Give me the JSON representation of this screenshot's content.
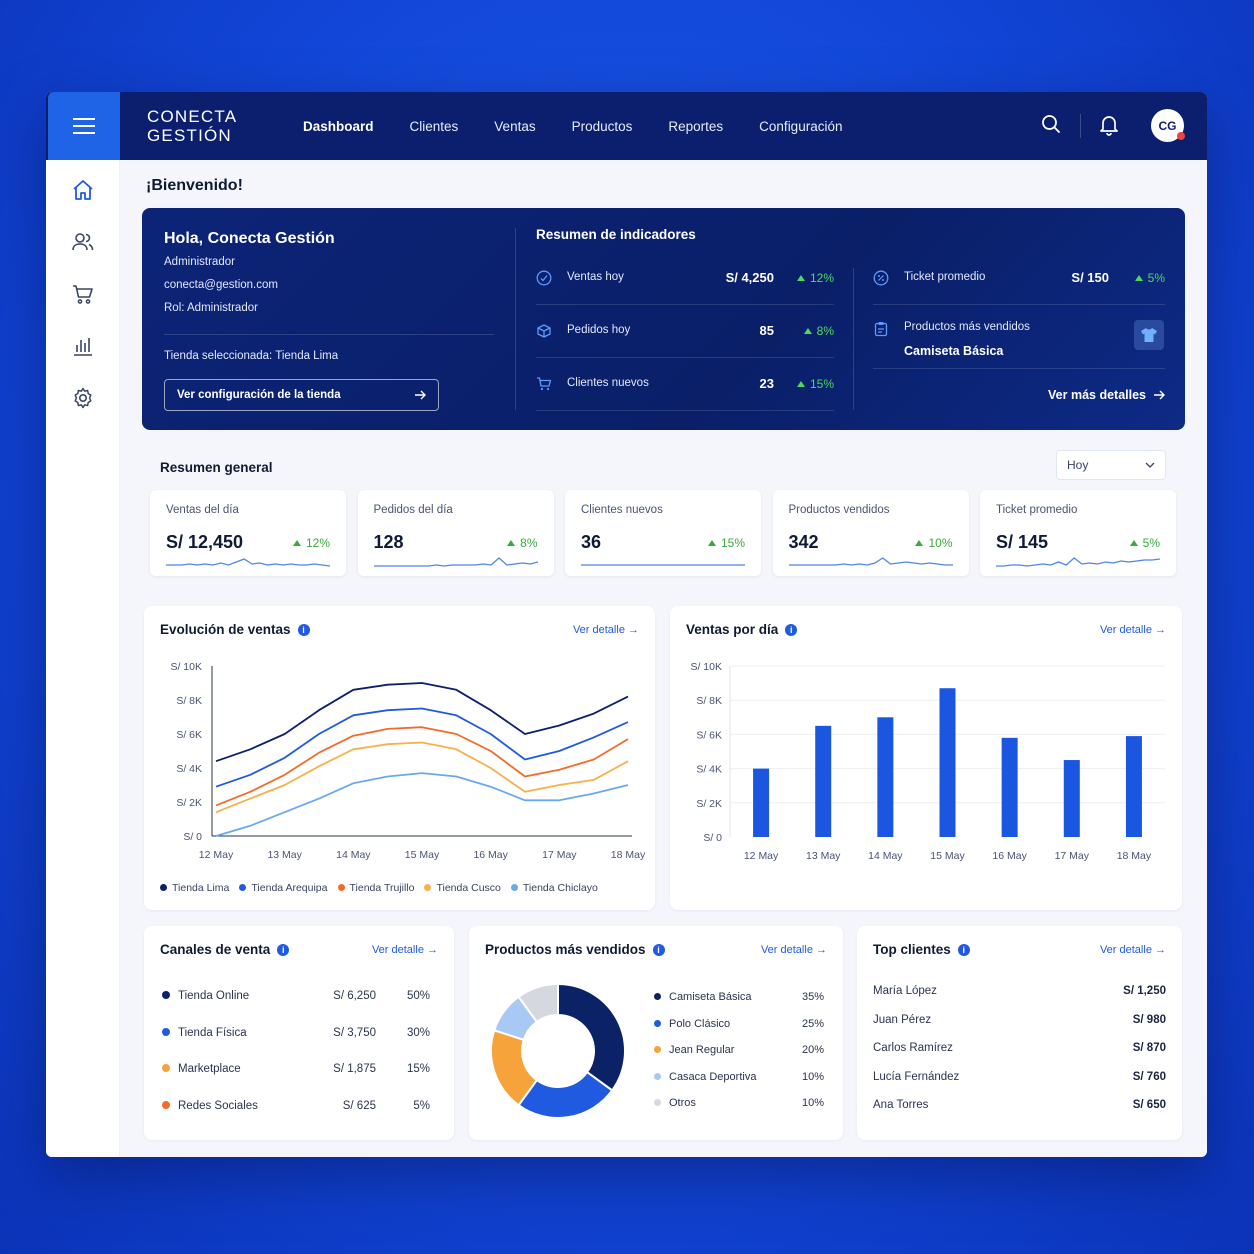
{
  "brand": {
    "line1": "CONECTA",
    "line2": "GESTIÓN"
  },
  "nav": [
    "Dashboard",
    "Clientes",
    "Ventas",
    "Productos",
    "Reportes",
    "Configuración"
  ],
  "user_initials": "CG",
  "welcome": "¡Bienvenido!",
  "hero": {
    "greeting": "Hola, Conecta Gestión",
    "role_line": "Administrador",
    "email": "conecta@gestion.com",
    "rol": "Rol: Administrador",
    "store": "Tienda seleccionada: Tienda Lima",
    "store_button": "Ver configuración de la tienda",
    "summary_title": "Resumen de indicadores",
    "ventas_label": "Ventas hoy",
    "ventas_value": "S/ 4,250",
    "ventas_change": "12%",
    "pedidos_label": "Pedidos hoy",
    "pedidos_value": "85",
    "pedidos_change": "8%",
    "clientes_label": "Clientes nuevos",
    "clientes_value": "23",
    "clientes_change": "15%",
    "ticket_label": "Ticket promedio",
    "ticket_value": "S/ 150",
    "ticket_change": "5%",
    "top_label": "Productos más vendidos",
    "top_value": "Camiseta Básica",
    "more": "Ver más detalles"
  },
  "resumen": {
    "title": "Resumen general",
    "period": "Hoy",
    "kpis": [
      {
        "label": "Ventas del día",
        "value": "S/ 12,450",
        "change": "12%"
      },
      {
        "label": "Pedidos del día",
        "value": "128",
        "change": "8%"
      },
      {
        "label": "Clientes nuevos",
        "value": "36",
        "change": "15%"
      },
      {
        "label": "Productos vendidos",
        "value": "342",
        "change": "10%"
      },
      {
        "label": "Ticket promedio",
        "value": "S/ 145",
        "change": "5%"
      }
    ]
  },
  "evolucion": {
    "title": "Evolución de ventas",
    "link": "Ver detalle"
  },
  "ventas_dia": {
    "title": "Ventas por día",
    "link": "Ver detalle"
  },
  "canales": {
    "title": "Canales de venta",
    "link": "Ver detalle",
    "rows": [
      {
        "name": "Tienda Online",
        "amount": "S/ 6,250",
        "pct": "50%",
        "color": "#0b1f6e"
      },
      {
        "name": "Tienda Física",
        "amount": "S/ 3,750",
        "pct": "30%",
        "color": "#1f5ae0"
      },
      {
        "name": "Marketplace",
        "amount": "S/ 1,875",
        "pct": "15%",
        "color": "#f6a33c"
      },
      {
        "name": "Redes Sociales",
        "amount": "S/ 625",
        "pct": "5%",
        "color": "#f26b2a"
      }
    ]
  },
  "productos": {
    "title": "Productos más vendidos",
    "link": "Ver detalle",
    "rows": [
      {
        "name": "Camiseta Básica",
        "pct": "35%",
        "color": "#0b2266"
      },
      {
        "name": "Polo Clásico",
        "pct": "25%",
        "color": "#1f5ae0"
      },
      {
        "name": "Jean Regular",
        "pct": "20%",
        "color": "#f6a33c"
      },
      {
        "name": "Casaca Deportiva",
        "pct": "10%",
        "color": "#a9c9f5"
      },
      {
        "name": "Otros",
        "pct": "10%",
        "color": "#d5d8de"
      }
    ]
  },
  "clientes": {
    "title": "Top clientes",
    "link": "Ver detalle",
    "rows": [
      {
        "name": "María López",
        "amount": "S/ 1,250"
      },
      {
        "name": "Juan Pérez",
        "amount": "S/ 980"
      },
      {
        "name": "Carlos Ramírez",
        "amount": "S/ 870"
      },
      {
        "name": "Lucía Fernández",
        "amount": "S/ 760"
      },
      {
        "name": "Ana Torres",
        "amount": "S/ 650"
      }
    ]
  },
  "chart_data": [
    {
      "type": "line",
      "title": "Evolución de ventas",
      "categories": [
        "12 May",
        "13 May",
        "14 May",
        "15 May",
        "16 May",
        "17 May",
        "18 May"
      ],
      "ylim": [
        0,
        10000
      ],
      "yticks": [
        "S/ 0",
        "S/ 2K",
        "S/ 4K",
        "S/ 6K",
        "S/ 8K",
        "S/ 10K"
      ],
      "series": [
        {
          "name": "Tienda Lima",
          "color": "#0b1f6e",
          "x": [
            0,
            0.5,
            1,
            1.5,
            2,
            2.5,
            3,
            3.5,
            4,
            4.5,
            5,
            5.5,
            6
          ],
          "values": [
            4400,
            5100,
            6000,
            7400,
            8600,
            8900,
            9000,
            8600,
            7400,
            6000,
            6500,
            7200,
            8200
          ]
        },
        {
          "name": "Tienda Arequipa",
          "color": "#1f5ae0",
          "x": [
            0,
            0.5,
            1,
            1.5,
            2,
            2.5,
            3,
            3.5,
            4,
            4.5,
            5,
            5.5,
            6
          ],
          "values": [
            2900,
            3600,
            4600,
            6000,
            7100,
            7400,
            7500,
            7100,
            6000,
            4500,
            5000,
            5800,
            6700
          ]
        },
        {
          "name": "Tienda Trujillo",
          "color": "#f26b2a",
          "x": [
            0,
            0.5,
            1,
            1.5,
            2,
            2.5,
            3,
            3.5,
            4,
            4.5,
            5,
            5.5,
            6
          ],
          "values": [
            1800,
            2600,
            3600,
            4900,
            5900,
            6300,
            6400,
            6000,
            5000,
            3500,
            3900,
            4500,
            5700
          ]
        },
        {
          "name": "Tienda Cusco",
          "color": "#f6b04c",
          "x": [
            0,
            0.5,
            1,
            1.5,
            2,
            2.5,
            3,
            3.5,
            4,
            4.5,
            5,
            5.5,
            6
          ],
          "values": [
            1400,
            2200,
            3000,
            4100,
            5100,
            5400,
            5500,
            5100,
            4000,
            2600,
            3000,
            3300,
            4400
          ]
        },
        {
          "name": "Tienda Chiclayo",
          "color": "#6aa8ee",
          "x": [
            0,
            0.5,
            1,
            1.5,
            2,
            2.5,
            3,
            3.5,
            4,
            4.5,
            5,
            5.5,
            6
          ],
          "values": [
            0,
            600,
            1400,
            2200,
            3100,
            3500,
            3700,
            3500,
            2900,
            2100,
            2100,
            2500,
            3000
          ]
        }
      ]
    },
    {
      "type": "bar",
      "title": "Ventas por día",
      "categories": [
        "12 May",
        "13 May",
        "14 May",
        "15 May",
        "16 May",
        "17 May",
        "18 May"
      ],
      "values": [
        4000,
        6500,
        7000,
        8700,
        5800,
        4500,
        5900
      ],
      "ylim": [
        0,
        10000
      ],
      "yticks": [
        "S/ 0",
        "S/ 2K",
        "S/ 4K",
        "S/ 6K",
        "S/ 8K",
        "S/ 10K"
      ],
      "color": "#1a56e0"
    },
    {
      "type": "pie",
      "title": "Productos más vendidos",
      "labels": [
        "Camiseta Básica",
        "Polo Clásico",
        "Jean Regular",
        "Casaca Deportiva",
        "Otros"
      ],
      "values": [
        35,
        25,
        20,
        10,
        10
      ]
    }
  ],
  "kpi_sparklines": [
    [
      5,
      5,
      5,
      6,
      5,
      6,
      5,
      7,
      5,
      8,
      11,
      6,
      7,
      5,
      6,
      5,
      6,
      5,
      5,
      6,
      5,
      4
    ],
    [
      4,
      4,
      4,
      4,
      4,
      4,
      4,
      4,
      5,
      4,
      5,
      5,
      5,
      5,
      6,
      5,
      12,
      5,
      6,
      7,
      6,
      8
    ],
    [
      5,
      5,
      5,
      5,
      5,
      5,
      5,
      5,
      5,
      5,
      5,
      5,
      5,
      5,
      5,
      5,
      5,
      5,
      5,
      5,
      5,
      5
    ],
    [
      5,
      5,
      5,
      5,
      5,
      5,
      5,
      6,
      5,
      6,
      5,
      7,
      12,
      6,
      7,
      8,
      7,
      6,
      7,
      6,
      5,
      5
    ],
    [
      4,
      4,
      5,
      5,
      4,
      5,
      6,
      5,
      8,
      5,
      12,
      6,
      7,
      6,
      8,
      7,
      9,
      8,
      9,
      10,
      10,
      11
    ]
  ]
}
